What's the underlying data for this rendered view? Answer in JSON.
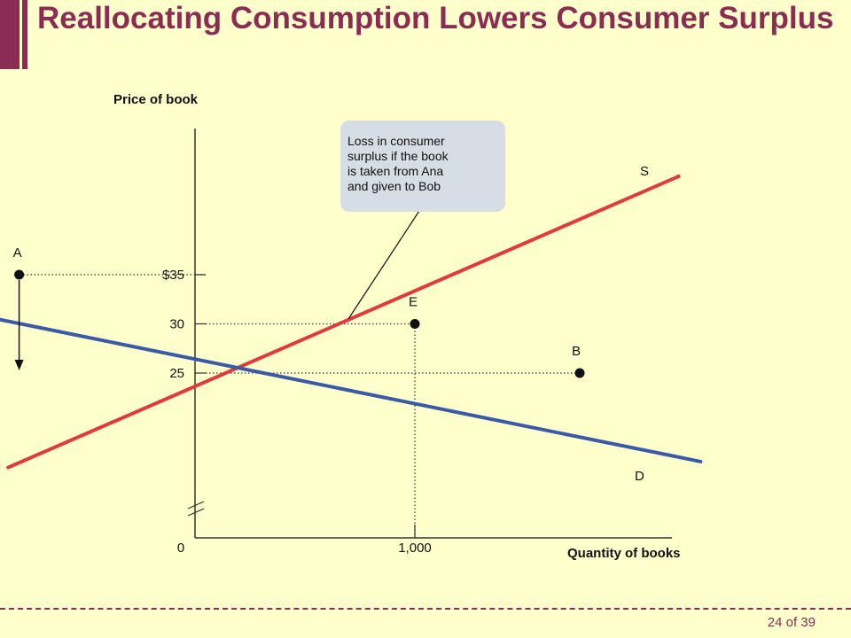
{
  "slide": {
    "title": "Reallocating Consumption Lowers Consumer Surplus",
    "page": "24 of 39"
  },
  "colors": {
    "background": "#ffffcc",
    "accent": "#8b2c55",
    "supply": "#e03a3e",
    "demand": "#3a5aa8",
    "callout_bg": "#d6dde4"
  },
  "chart_data": {
    "type": "line",
    "title": "",
    "xlabel": "Quantity of books",
    "ylabel": "Price of book",
    "x_ticks": [
      {
        "value": 0,
        "label": "0"
      },
      {
        "value": 1000,
        "label": "1,000"
      }
    ],
    "y_ticks": [
      {
        "value": 35,
        "label": "$35"
      },
      {
        "value": 30,
        "label": "30"
      },
      {
        "value": 25,
        "label": "25"
      }
    ],
    "series": [
      {
        "name": "S",
        "kind": "supply",
        "points": [
          [
            -850,
            15.4
          ],
          [
            2200,
            45.0
          ]
        ]
      },
      {
        "name": "D",
        "kind": "demand",
        "points": [
          [
            -3000,
            40.0
          ],
          [
            2300,
            16.0
          ]
        ]
      }
    ],
    "points": [
      {
        "label": "A",
        "x": -800,
        "y": 35
      },
      {
        "label": "E",
        "x": 1000,
        "y": 30
      },
      {
        "label": "B",
        "x": 1750,
        "y": 25
      }
    ],
    "annotation": {
      "text_lines": [
        "Loss in consumer",
        "surplus if the book",
        "is taken from Ana",
        "and given to Bob"
      ]
    },
    "axis_break": true,
    "grid": false
  }
}
